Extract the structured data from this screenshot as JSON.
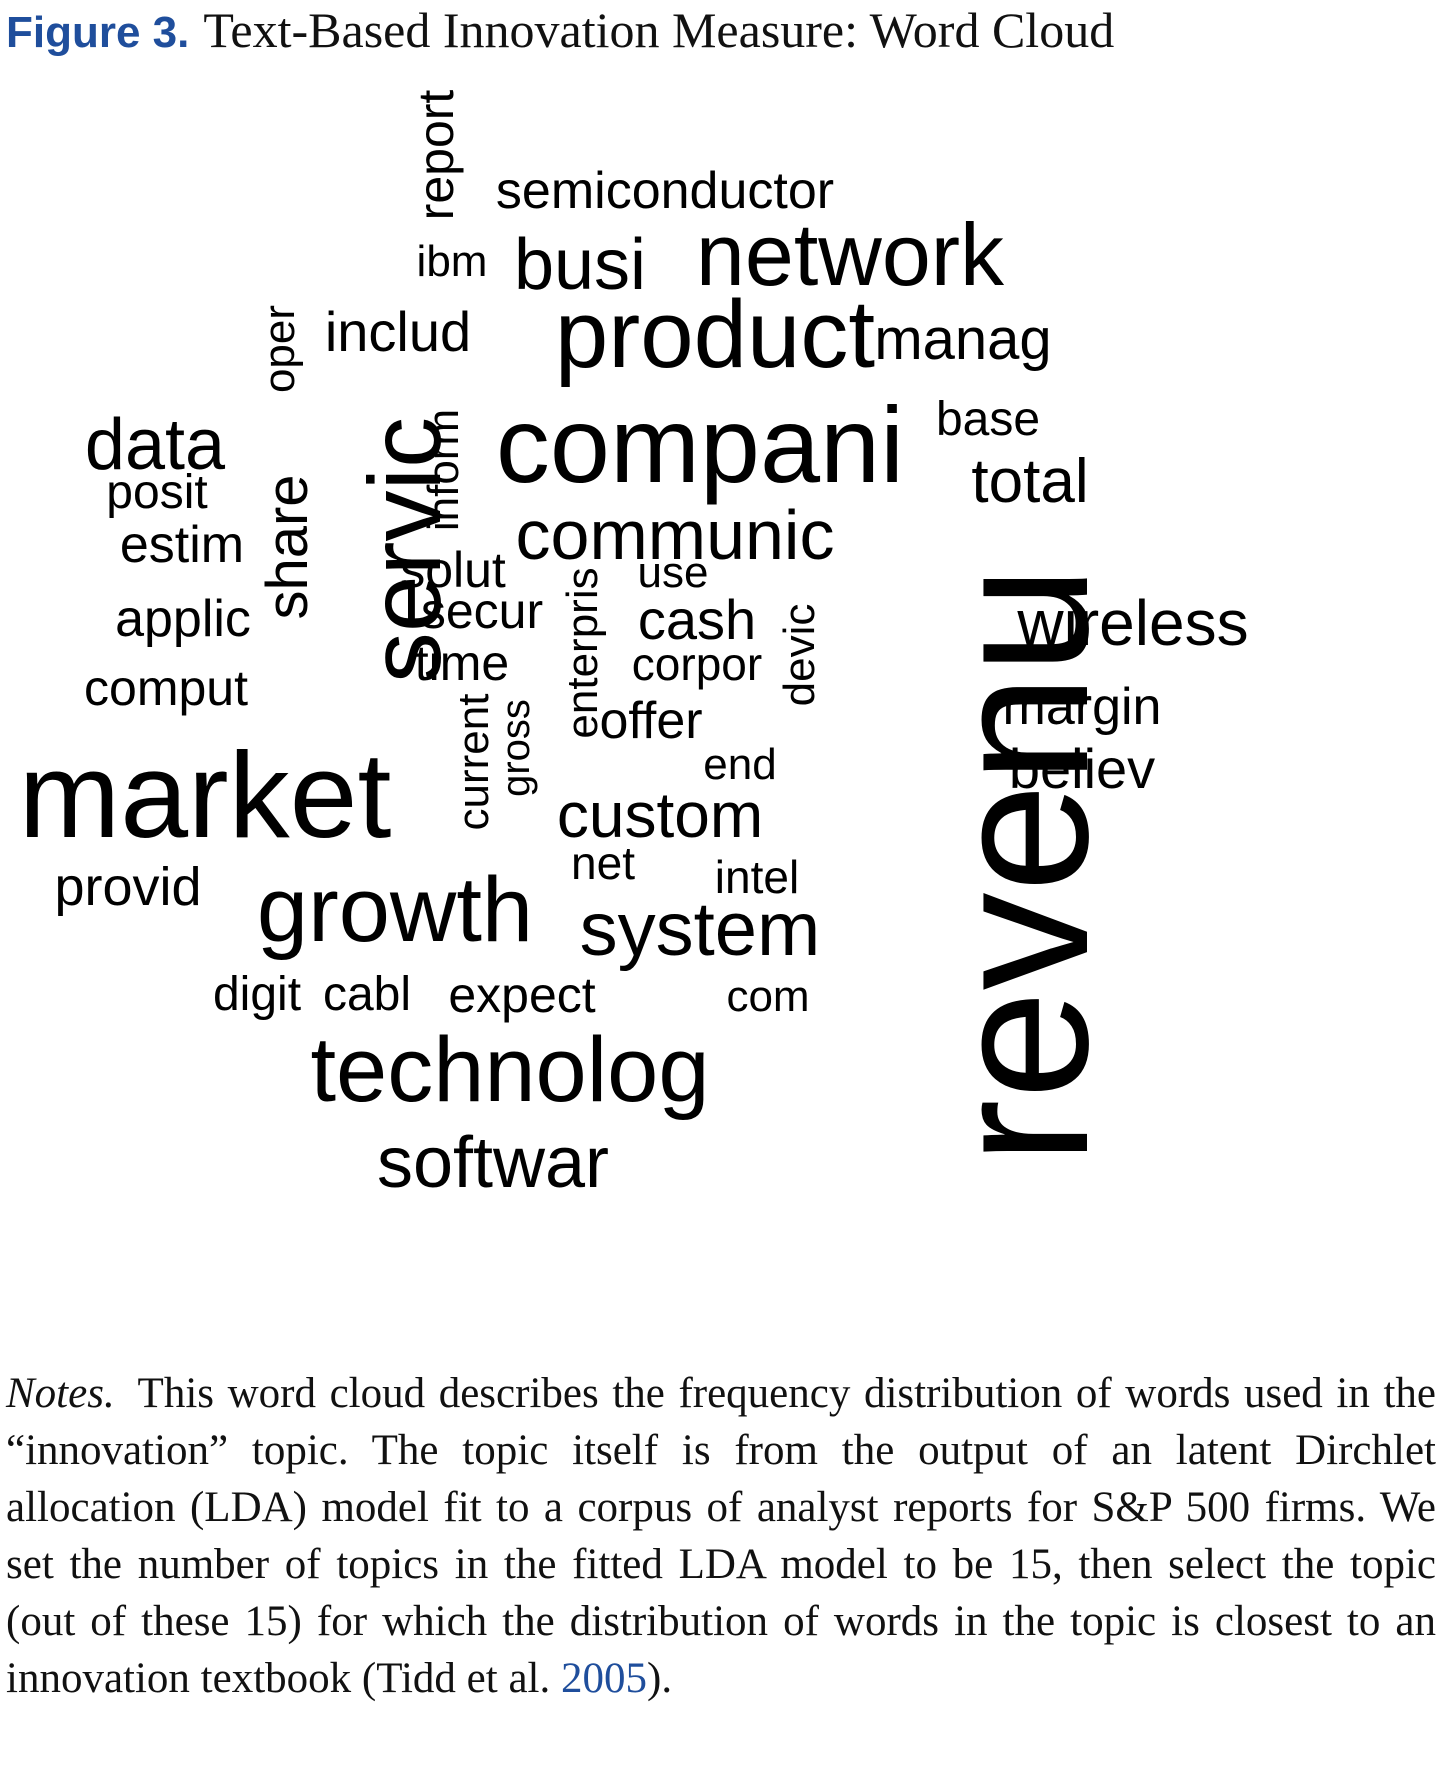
{
  "figure": {
    "label": "Figure 3.",
    "caption": "Text-Based Innovation Measure: Word Cloud"
  },
  "word_cloud": {
    "words": [
      {
        "id": "revenu",
        "text": "revenu",
        "rotated": true
      },
      {
        "id": "market",
        "text": "market",
        "rotated": false
      },
      {
        "id": "compani",
        "text": "compani",
        "rotated": false
      },
      {
        "id": "servic",
        "text": "servic",
        "rotated": true
      },
      {
        "id": "product",
        "text": "product",
        "rotated": false
      },
      {
        "id": "growth",
        "text": "growth",
        "rotated": false
      },
      {
        "id": "technolog",
        "text": "technolog",
        "rotated": false
      },
      {
        "id": "network",
        "text": "network",
        "rotated": false
      },
      {
        "id": "system",
        "text": "system",
        "rotated": false
      },
      {
        "id": "communic",
        "text": "communic",
        "rotated": false
      },
      {
        "id": "data",
        "text": "data",
        "rotated": false
      },
      {
        "id": "busi",
        "text": "busi",
        "rotated": false
      },
      {
        "id": "softwar",
        "text": "softwar",
        "rotated": false
      },
      {
        "id": "custom",
        "text": "custom",
        "rotated": false
      },
      {
        "id": "wireless",
        "text": "wireless",
        "rotated": false
      },
      {
        "id": "share",
        "text": "share",
        "rotated": true
      },
      {
        "id": "total",
        "text": "total",
        "rotated": false
      },
      {
        "id": "manag",
        "text": "manag",
        "rotated": false
      },
      {
        "id": "semiconductor",
        "text": "semiconductor",
        "rotated": false
      },
      {
        "id": "includ",
        "text": "includ",
        "rotated": false
      },
      {
        "id": "report",
        "text": "report",
        "rotated": true
      },
      {
        "id": "ibm",
        "text": "ibm",
        "rotated": false
      },
      {
        "id": "oper",
        "text": "oper",
        "rotated": true
      },
      {
        "id": "inform",
        "text": "inform",
        "rotated": true
      },
      {
        "id": "base",
        "text": "base",
        "rotated": false
      },
      {
        "id": "posit",
        "text": "posit",
        "rotated": false
      },
      {
        "id": "estim",
        "text": "estim",
        "rotated": false
      },
      {
        "id": "solut",
        "text": "solut",
        "rotated": false
      },
      {
        "id": "use",
        "text": "use",
        "rotated": false
      },
      {
        "id": "applic",
        "text": "applic",
        "rotated": false
      },
      {
        "id": "secur",
        "text": "secur",
        "rotated": false
      },
      {
        "id": "enterpris",
        "text": "enterpris",
        "rotated": true
      },
      {
        "id": "cash",
        "text": "cash",
        "rotated": false
      },
      {
        "id": "devic",
        "text": "devic",
        "rotated": true
      },
      {
        "id": "time",
        "text": "time",
        "rotated": false
      },
      {
        "id": "corpor",
        "text": "corpor",
        "rotated": false
      },
      {
        "id": "comput",
        "text": "comput",
        "rotated": false
      },
      {
        "id": "margin",
        "text": "margin",
        "rotated": false
      },
      {
        "id": "current",
        "text": "current",
        "rotated": true
      },
      {
        "id": "gross",
        "text": "gross",
        "rotated": true
      },
      {
        "id": "offer",
        "text": "offer",
        "rotated": false
      },
      {
        "id": "believ",
        "text": "believ",
        "rotated": false
      },
      {
        "id": "end",
        "text": "end",
        "rotated": false
      },
      {
        "id": "provid",
        "text": "provid",
        "rotated": false
      },
      {
        "id": "net",
        "text": "net",
        "rotated": false
      },
      {
        "id": "intel",
        "text": "intel",
        "rotated": false
      },
      {
        "id": "digit",
        "text": "digit",
        "rotated": false
      },
      {
        "id": "cabl",
        "text": "cabl",
        "rotated": false
      },
      {
        "id": "expect",
        "text": "expect",
        "rotated": false
      },
      {
        "id": "com",
        "text": "com",
        "rotated": false
      }
    ]
  },
  "notes": {
    "label": "Notes.",
    "body": "This word cloud describes the frequency distribution of words used in the “innovation” topic. The topic itself is from the output of an latent Dirchlet allocation (LDA) model fit to a corpus of analyst reports for S&P 500 firms. We set the number of topics in the fitted LDA model to be 15, then select the topic (out of these 15) for which the distribution of words in the topic is closest to an innovation textbook (Tidd et al.",
    "citation_year": "2005",
    "end": ")."
  }
}
